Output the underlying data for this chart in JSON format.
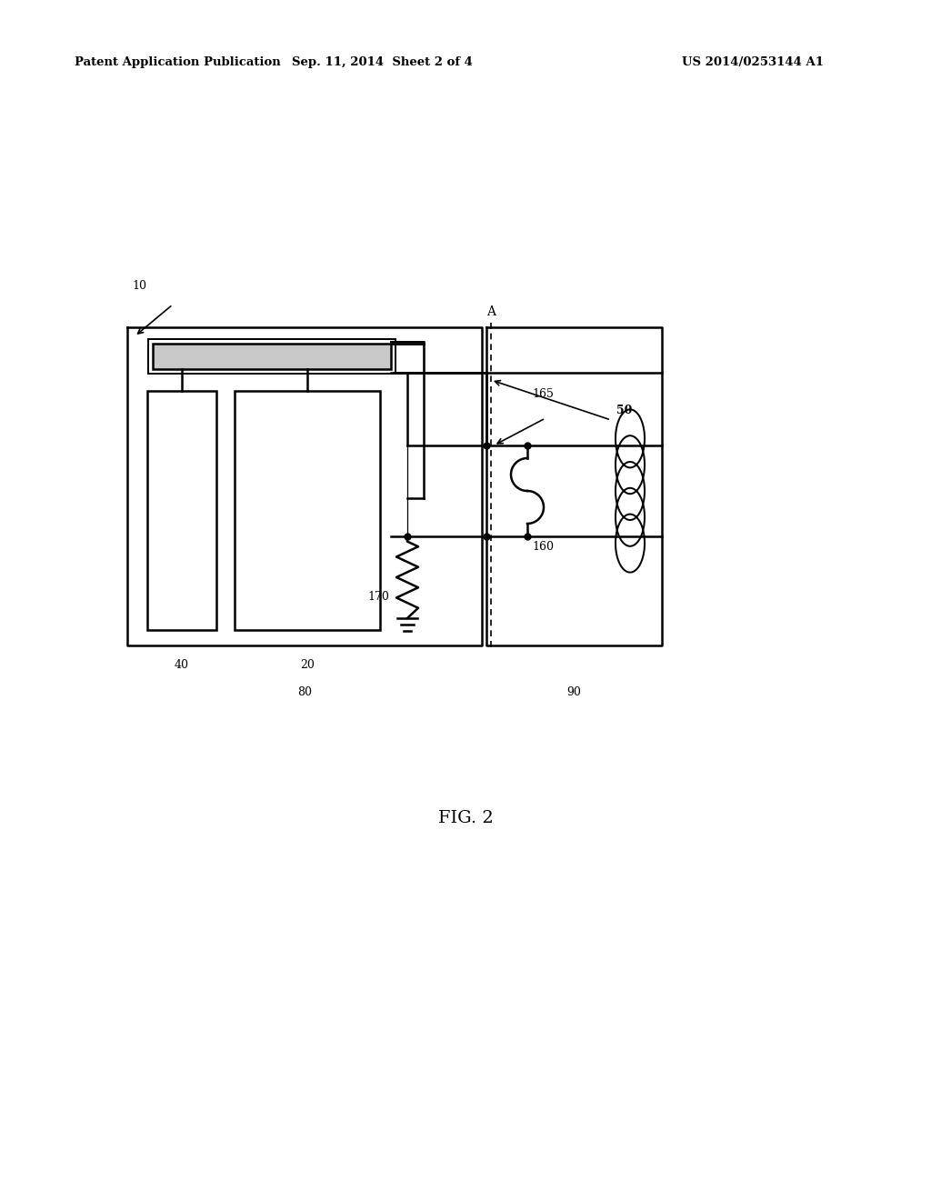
{
  "title": "FIG. 2",
  "header_left": "Patent Application Publication",
  "header_mid": "Sep. 11, 2014  Sheet 2 of 4",
  "header_right": "US 2014/0253144 A1",
  "bg_color": "#ffffff",
  "line_color": "#000000",
  "gray_fill": "#c8c8c8"
}
